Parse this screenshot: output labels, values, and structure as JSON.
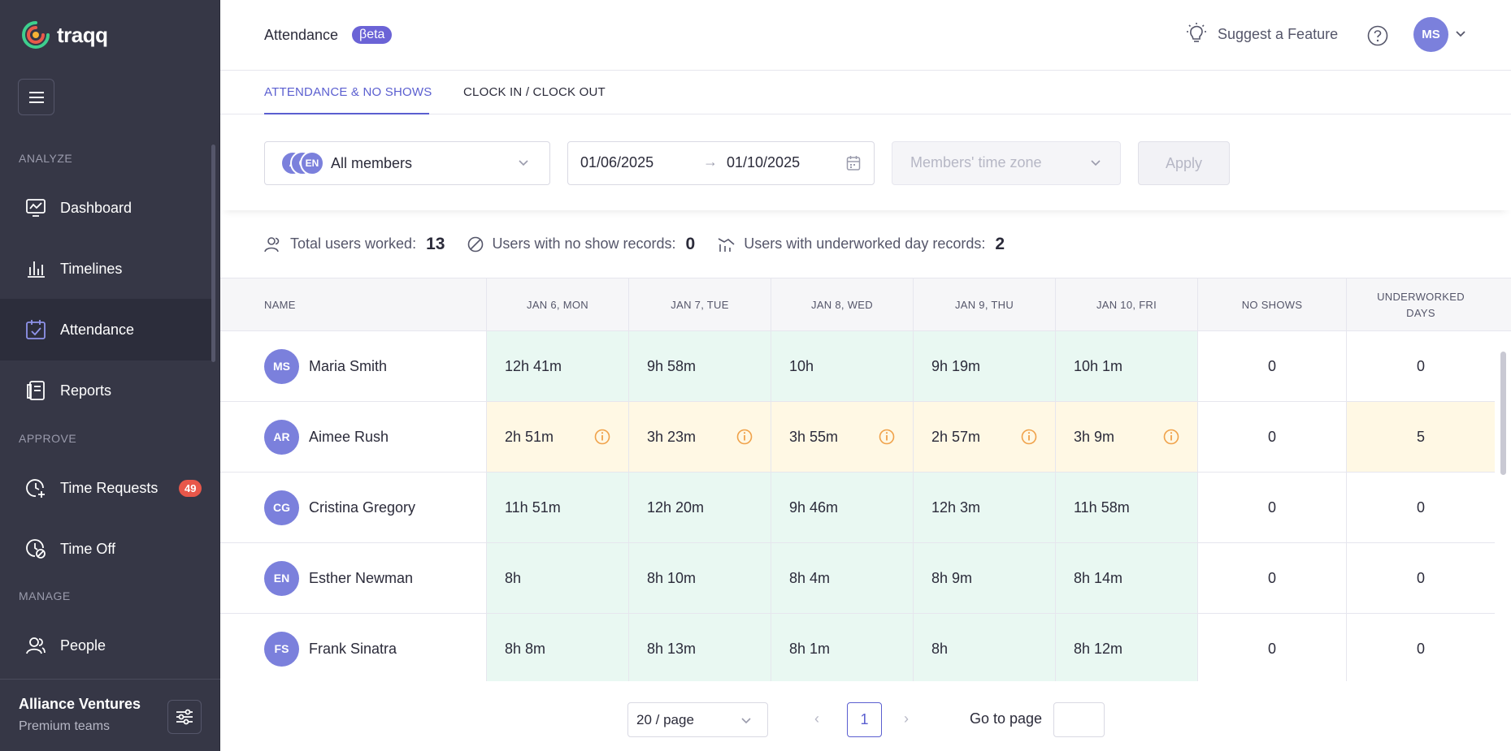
{
  "brand": {
    "name": "traqq",
    "logo_colors": [
      "#f5b335",
      "#e85a4a",
      "#3ecf8e"
    ]
  },
  "sidebar": {
    "sections": {
      "analyze": "ANALYZE",
      "approve": "APPROVE",
      "manage": "MANAGE"
    },
    "items": [
      {
        "label": "Dashboard",
        "icon": "dashboard-icon"
      },
      {
        "label": "Timelines",
        "icon": "bar-chart-icon"
      },
      {
        "label": "Attendance",
        "icon": "calendar-check-icon",
        "active": true
      },
      {
        "label": "Reports",
        "icon": "reports-icon"
      },
      {
        "label": "Time Requests",
        "icon": "time-request-icon",
        "badge": "49"
      },
      {
        "label": "Time Off",
        "icon": "time-off-icon"
      },
      {
        "label": "People",
        "icon": "people-icon"
      }
    ],
    "workspace": {
      "name": "Alliance Ventures",
      "plan": "Premium teams"
    }
  },
  "header": {
    "title": "Attendance",
    "badge": "βeta",
    "suggest": "Suggest a Feature",
    "user_initials": "MS"
  },
  "tabs": [
    "ATTENDANCE & NO SHOWS",
    "CLOCK IN / CLOCK OUT"
  ],
  "filters": {
    "members": {
      "label": "All members",
      "avatars": [
        "A",
        "C",
        "EN"
      ]
    },
    "date_from": "01/06/2025",
    "date_arrow": "→",
    "date_to": "01/10/2025",
    "timezone_placeholder": "Members' time zone",
    "apply": "Apply"
  },
  "stats": [
    {
      "label": "Total users worked:",
      "value": "13"
    },
    {
      "label": "Users with no show records:",
      "value": "0"
    },
    {
      "label": "Users with underworked day records:",
      "value": "2"
    }
  ],
  "table": {
    "columns": [
      "NAME",
      "JAN 6, MON",
      "JAN 7, TUE",
      "JAN 8, WED",
      "JAN 9, THU",
      "JAN 10, FRI",
      "NO SHOWS",
      "UNDERWORKED DAYS"
    ],
    "rows": [
      {
        "initials": "MS",
        "name": "Maria Smith",
        "days": [
          "12h 41m",
          "9h 58m",
          "10h",
          "9h 19m",
          "10h 1m"
        ],
        "no_shows": "0",
        "underworked": "0",
        "warn": false
      },
      {
        "initials": "AR",
        "name": "Aimee Rush",
        "days": [
          "2h 51m",
          "3h 23m",
          "3h 55m",
          "2h 57m",
          "3h 9m"
        ],
        "no_shows": "0",
        "underworked": "5",
        "warn": true
      },
      {
        "initials": "CG",
        "name": "Cristina Gregory",
        "days": [
          "11h 51m",
          "12h 20m",
          "9h 46m",
          "12h 3m",
          "11h 58m"
        ],
        "no_shows": "0",
        "underworked": "0",
        "warn": false
      },
      {
        "initials": "EN",
        "name": "Esther Newman",
        "days": [
          "8h",
          "8h 10m",
          "8h 4m",
          "8h 9m",
          "8h 14m"
        ],
        "no_shows": "0",
        "underworked": "0",
        "warn": false
      },
      {
        "initials": "FS",
        "name": "Frank Sinatra",
        "days": [
          "8h 8m",
          "8h 13m",
          "8h 1m",
          "8h",
          "8h 12m"
        ],
        "no_shows": "0",
        "underworked": "0",
        "warn": false
      }
    ]
  },
  "pagination": {
    "page_size": "20 / page",
    "current_page": "1",
    "goto_label": "Go to page",
    "prev": "‹",
    "next": "›"
  },
  "colors": {
    "sidebar_bg": "#363746",
    "accent": "#5b5fd0",
    "avatar": "#7b80dc",
    "ok_cell": "#e9f8f2",
    "warn_cell": "#fff8e4",
    "warn_icon": "#f0a24a",
    "badge": "#e8574a"
  }
}
